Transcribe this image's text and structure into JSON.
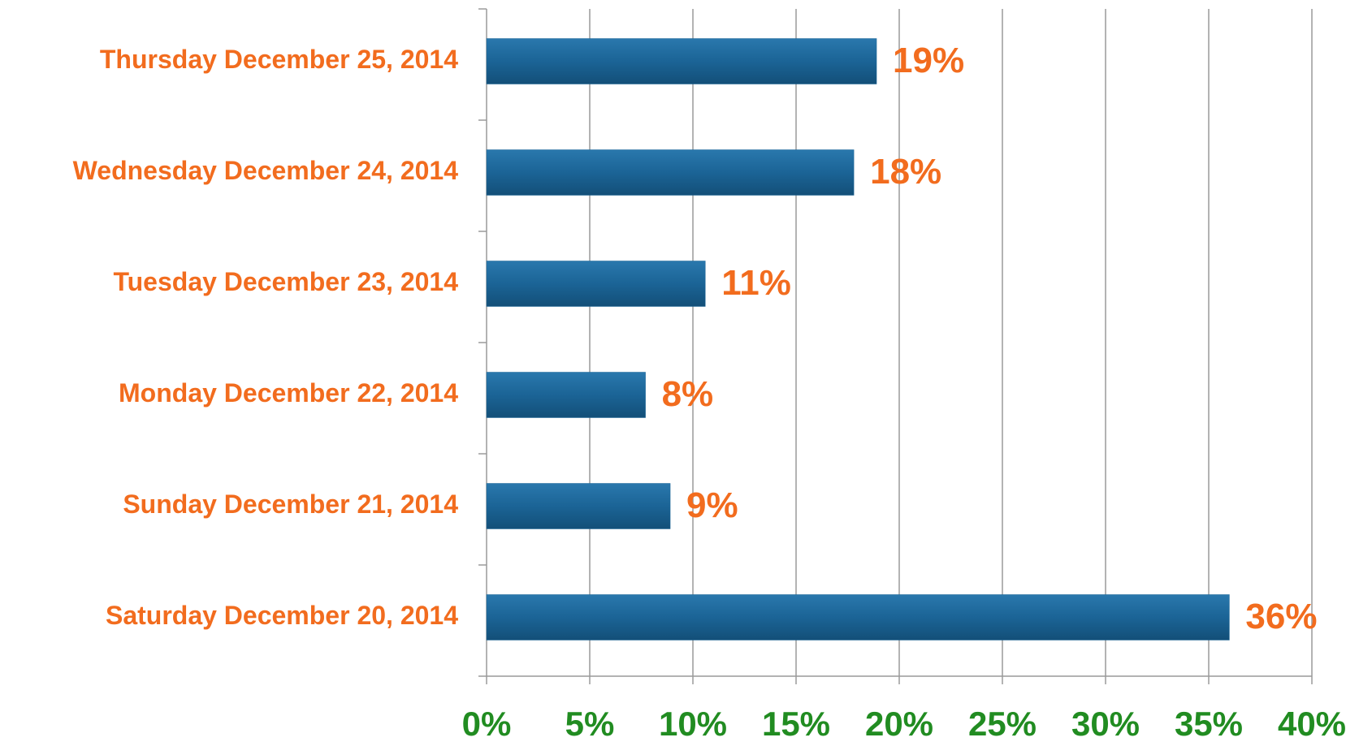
{
  "chart_data": {
    "type": "bar",
    "orientation": "horizontal",
    "categories": [
      "Thursday December 25, 2014",
      "Wednesday December 24, 2014",
      "Tuesday December 23, 2014",
      "Monday December 22, 2014",
      "Sunday December 21, 2014",
      "Saturday December 20, 2014"
    ],
    "values": [
      18.9,
      17.8,
      10.6,
      7.7,
      8.9,
      36.0
    ],
    "value_labels": [
      "19%",
      "18%",
      "11%",
      "8%",
      "9%",
      "36%"
    ],
    "color": "#1b6496",
    "xlim": [
      0,
      40
    ],
    "xticks": [
      {
        "value": 0,
        "label": "0%"
      },
      {
        "value": 5,
        "label": "5%"
      },
      {
        "value": 10,
        "label": "10%"
      },
      {
        "value": 15,
        "label": "15%"
      },
      {
        "value": 20,
        "label": "20%"
      },
      {
        "value": 25,
        "label": "25%"
      },
      {
        "value": 30,
        "label": "30%"
      },
      {
        "value": 35,
        "label": "35%"
      },
      {
        "value": 40,
        "label": "40%"
      }
    ],
    "grid": true
  }
}
